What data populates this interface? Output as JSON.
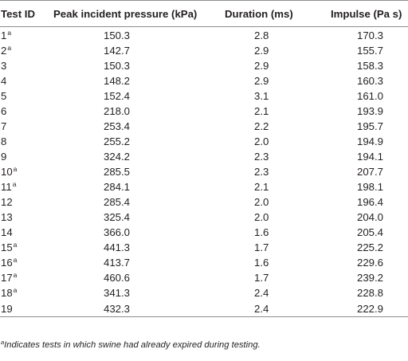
{
  "table": {
    "headers": {
      "test_id": "Test ID",
      "peak": "Peak incident pressure (kPa)",
      "duration": "Duration (ms)",
      "impulse": "Impulse (Pa s)"
    },
    "rows": [
      {
        "id": "1",
        "mark": "a",
        "peak": "150.3",
        "duration": "2.8",
        "impulse": "170.3"
      },
      {
        "id": "2",
        "mark": "a",
        "peak": "142.7",
        "duration": "2.9",
        "impulse": "155.7"
      },
      {
        "id": "3",
        "mark": "",
        "peak": "150.3",
        "duration": "2.9",
        "impulse": "158.3"
      },
      {
        "id": "4",
        "mark": "",
        "peak": "148.2",
        "duration": "2.9",
        "impulse": "160.3"
      },
      {
        "id": "5",
        "mark": "",
        "peak": "152.4",
        "duration": "3.1",
        "impulse": "161.0"
      },
      {
        "id": "6",
        "mark": "",
        "peak": "218.0",
        "duration": "2.1",
        "impulse": "193.9"
      },
      {
        "id": "7",
        "mark": "",
        "peak": "253.4",
        "duration": "2.2",
        "impulse": "195.7"
      },
      {
        "id": "8",
        "mark": "",
        "peak": "255.2",
        "duration": "2.0",
        "impulse": "194.9"
      },
      {
        "id": "9",
        "mark": "",
        "peak": "324.2",
        "duration": "2.3",
        "impulse": "194.1"
      },
      {
        "id": "10",
        "mark": "a",
        "peak": "285.5",
        "duration": "2.3",
        "impulse": "207.7"
      },
      {
        "id": "11",
        "mark": "a",
        "peak": "284.1",
        "duration": "2.1",
        "impulse": "198.1"
      },
      {
        "id": "12",
        "mark": "",
        "peak": "285.4",
        "duration": "2.0",
        "impulse": "196.4"
      },
      {
        "id": "13",
        "mark": "",
        "peak": "325.4",
        "duration": "2.0",
        "impulse": "204.0"
      },
      {
        "id": "14",
        "mark": "",
        "peak": "366.0",
        "duration": "1.6",
        "impulse": "205.4"
      },
      {
        "id": "15",
        "mark": "a",
        "peak": "441.3",
        "duration": "1.7",
        "impulse": "225.2"
      },
      {
        "id": "16",
        "mark": "a",
        "peak": "413.7",
        "duration": "1.6",
        "impulse": "229.6"
      },
      {
        "id": "17",
        "mark": "a",
        "peak": "460.6",
        "duration": "1.7",
        "impulse": "239.2"
      },
      {
        "id": "18",
        "mark": "a",
        "peak": "341.3",
        "duration": "2.4",
        "impulse": "228.8"
      },
      {
        "id": "19",
        "mark": "",
        "peak": "432.3",
        "duration": "2.4",
        "impulse": "222.9"
      }
    ]
  },
  "footnote": {
    "mark": "a",
    "text": "Indicates tests in which swine had already expired during testing."
  },
  "colors": {
    "text": "#231f20",
    "rule": "#8c8c8c"
  }
}
